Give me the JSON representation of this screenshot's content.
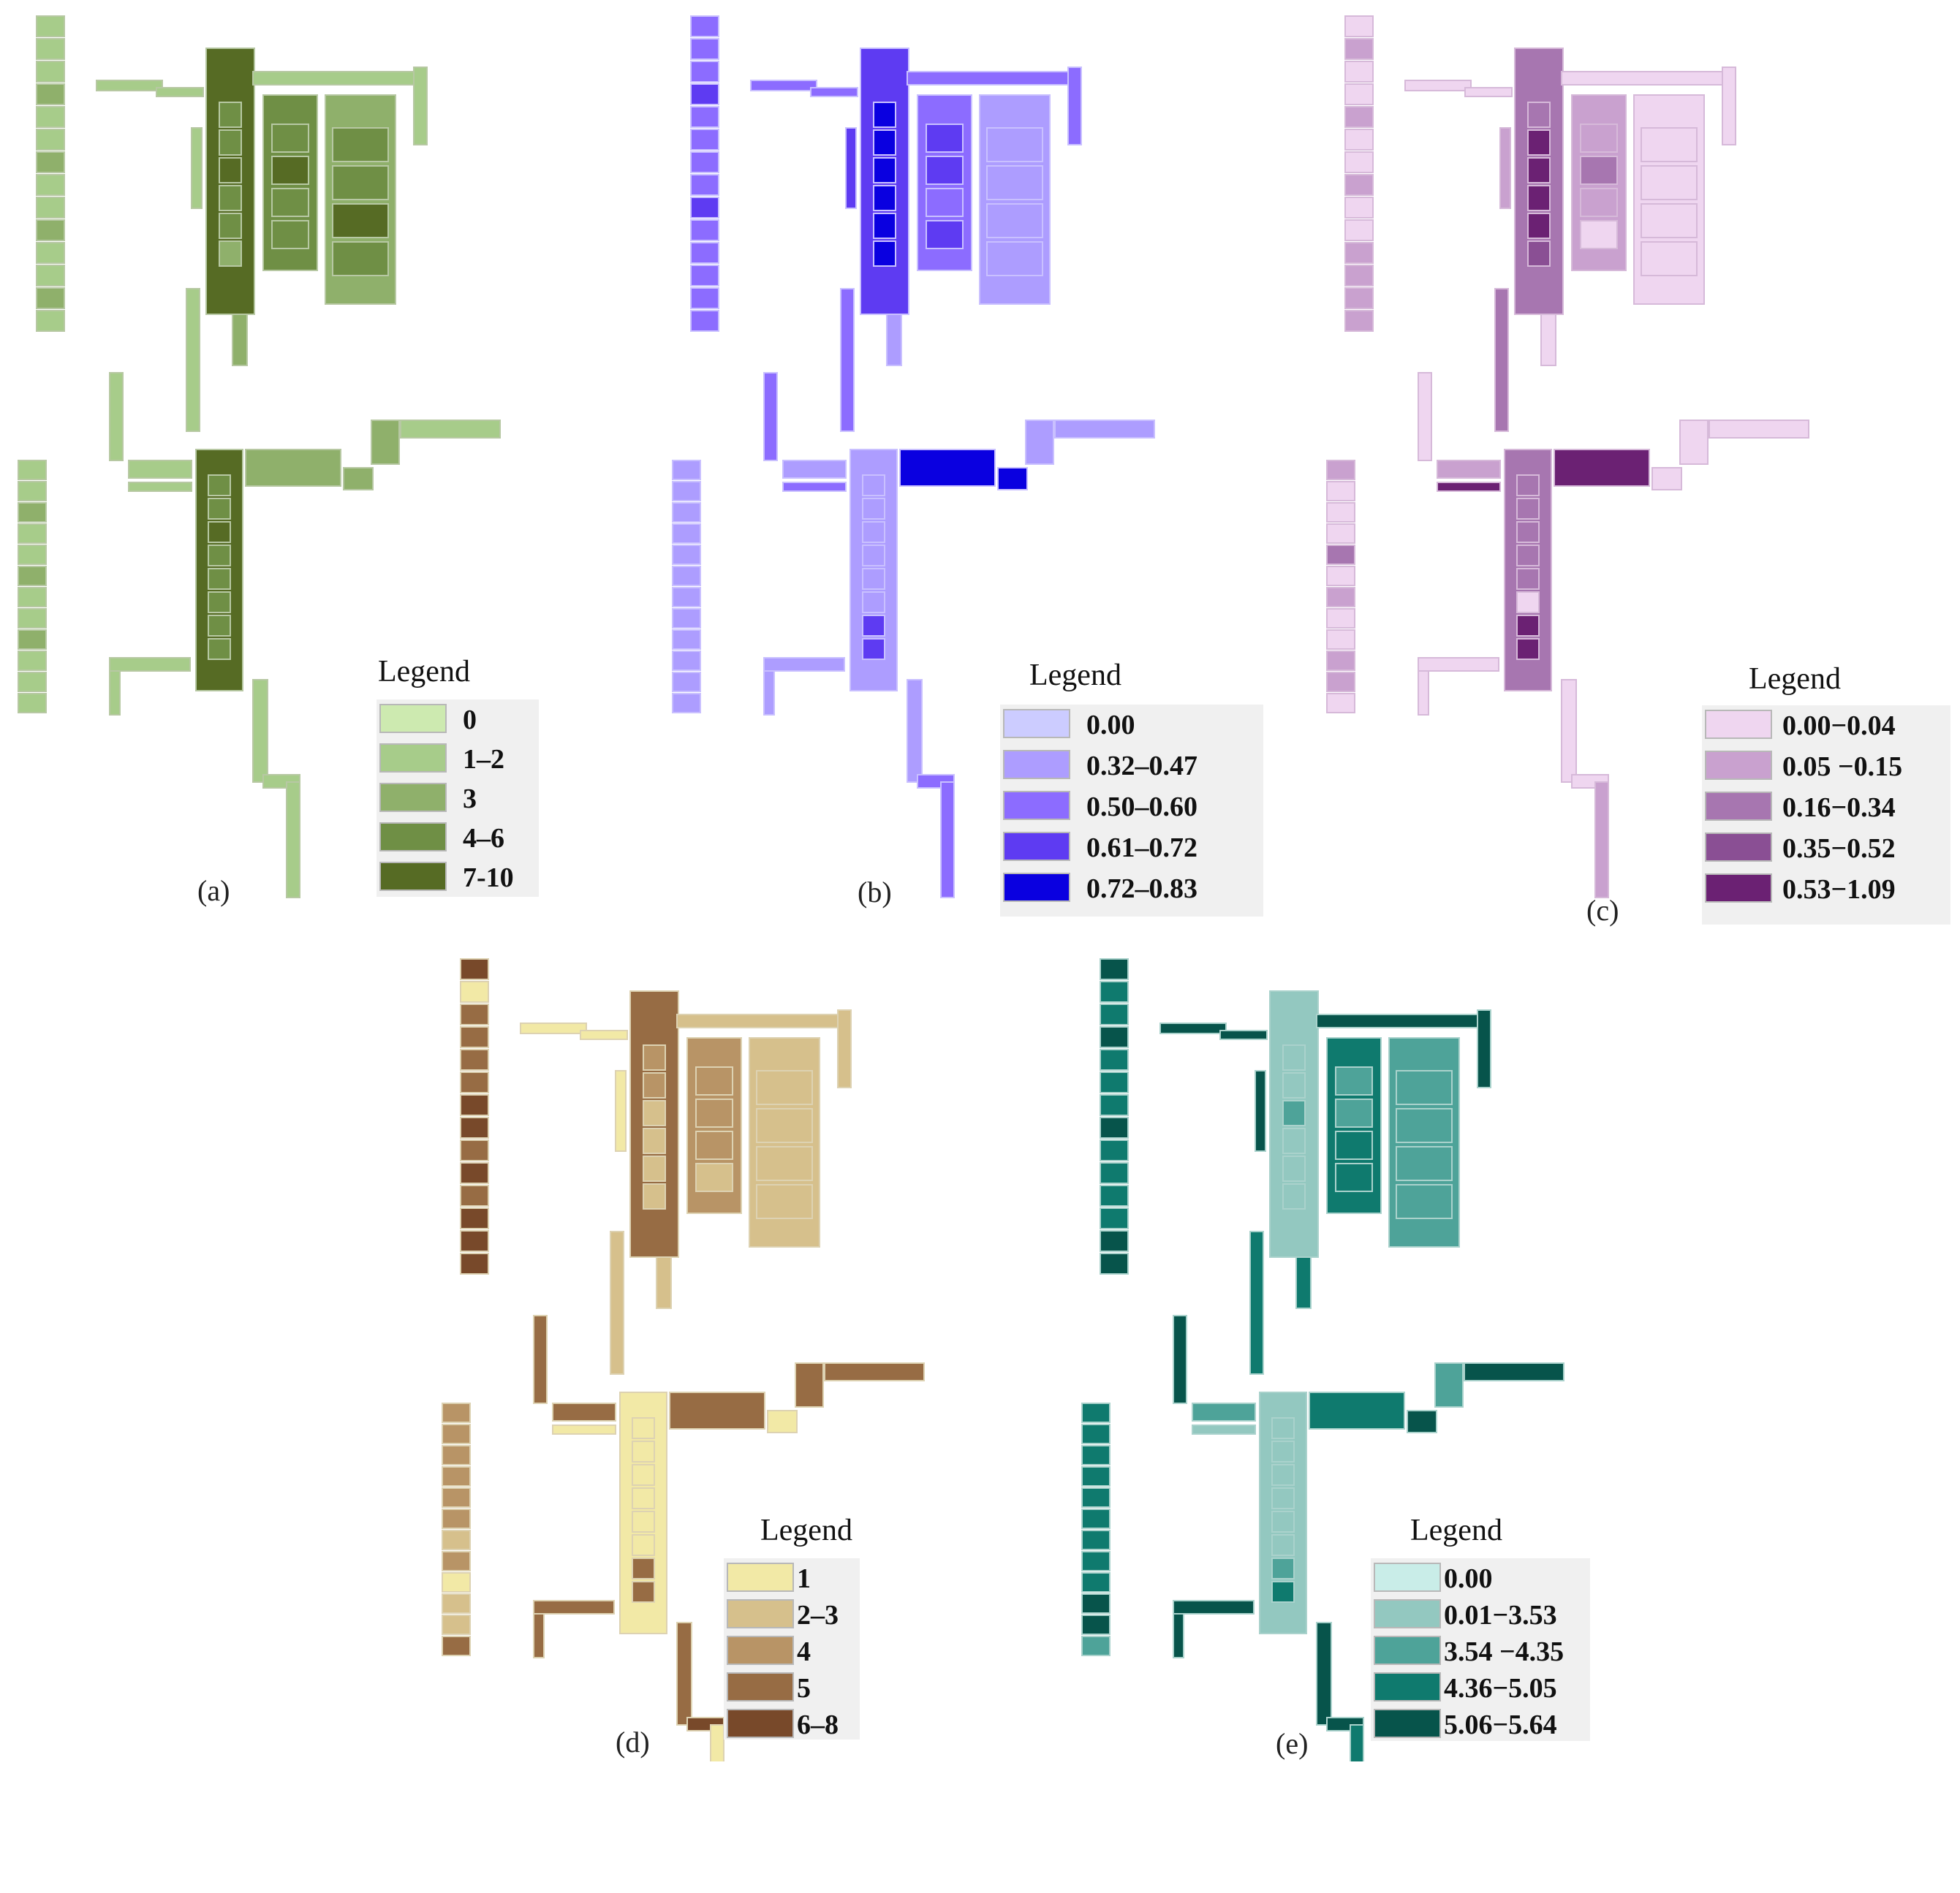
{
  "panels": [
    {
      "id": "a",
      "label": "(a)",
      "legend": {
        "title": "Legend",
        "classes": [
          {
            "label": "0",
            "color": "#cdeab0"
          },
          {
            "label": "1–2",
            "color": "#a7cc8a"
          },
          {
            "label": "3",
            "color": "#8fb06b"
          },
          {
            "label": "4–6",
            "color": "#6f8f45"
          },
          {
            "label": "7-10",
            "color": "#566b24"
          }
        ]
      },
      "outline_color": "#b7c8a3"
    },
    {
      "id": "b",
      "label": "(b)",
      "legend": {
        "title": "Legend",
        "classes": [
          {
            "label": "0.00",
            "color": "#ccccff"
          },
          {
            "label": "0.32–0.47",
            "color": "#ad9dff"
          },
          {
            "label": "0.50–0.60",
            "color": "#8c6cff"
          },
          {
            "label": "0.61–0.72",
            "color": "#5e3bf2"
          },
          {
            "label": "0.72–0.83",
            "color": "#0a00e0"
          }
        ]
      },
      "outline_color": "#c9c0ff"
    },
    {
      "id": "c",
      "label": "(c)",
      "legend": {
        "title": "Legend",
        "classes": [
          {
            "label": "0.00−0.04",
            "color": "#efd6f0"
          },
          {
            "label": "0.05 −0.15",
            "color": "#c9a1cf"
          },
          {
            "label": "0.16−0.34",
            "color": "#a776b0"
          },
          {
            "label": "0.35−0.52",
            "color": "#8a4f94"
          },
          {
            "label": "0.53−1.09",
            "color": "#6b2173"
          }
        ]
      },
      "outline_color": "#d6b9d9"
    },
    {
      "id": "d",
      "label": "(d)",
      "legend": {
        "title": "Legend",
        "classes": [
          {
            "label": "1",
            "color": "#f2e9a6"
          },
          {
            "label": "2–3",
            "color": "#d6c08c"
          },
          {
            "label": "4",
            "color": "#b89466"
          },
          {
            "label": "5",
            "color": "#976c44"
          },
          {
            "label": "6–8",
            "color": "#78492a"
          }
        ]
      },
      "outline_color": "#ddd2b2"
    },
    {
      "id": "e",
      "label": "(e)",
      "legend": {
        "title": "Legend",
        "classes": [
          {
            "label": "0.00",
            "color": "#c9ede8"
          },
          {
            "label": "0.01−3.53",
            "color": "#93c8c0"
          },
          {
            "label": "3.54 −4.35",
            "color": "#4ea399"
          },
          {
            "label": "4.36−5.05",
            "color": "#0f7a6e"
          },
          {
            "label": "5.06−5.64",
            "color": "#07544b"
          }
        ]
      },
      "outline_color": "#aad2cc"
    }
  ]
}
